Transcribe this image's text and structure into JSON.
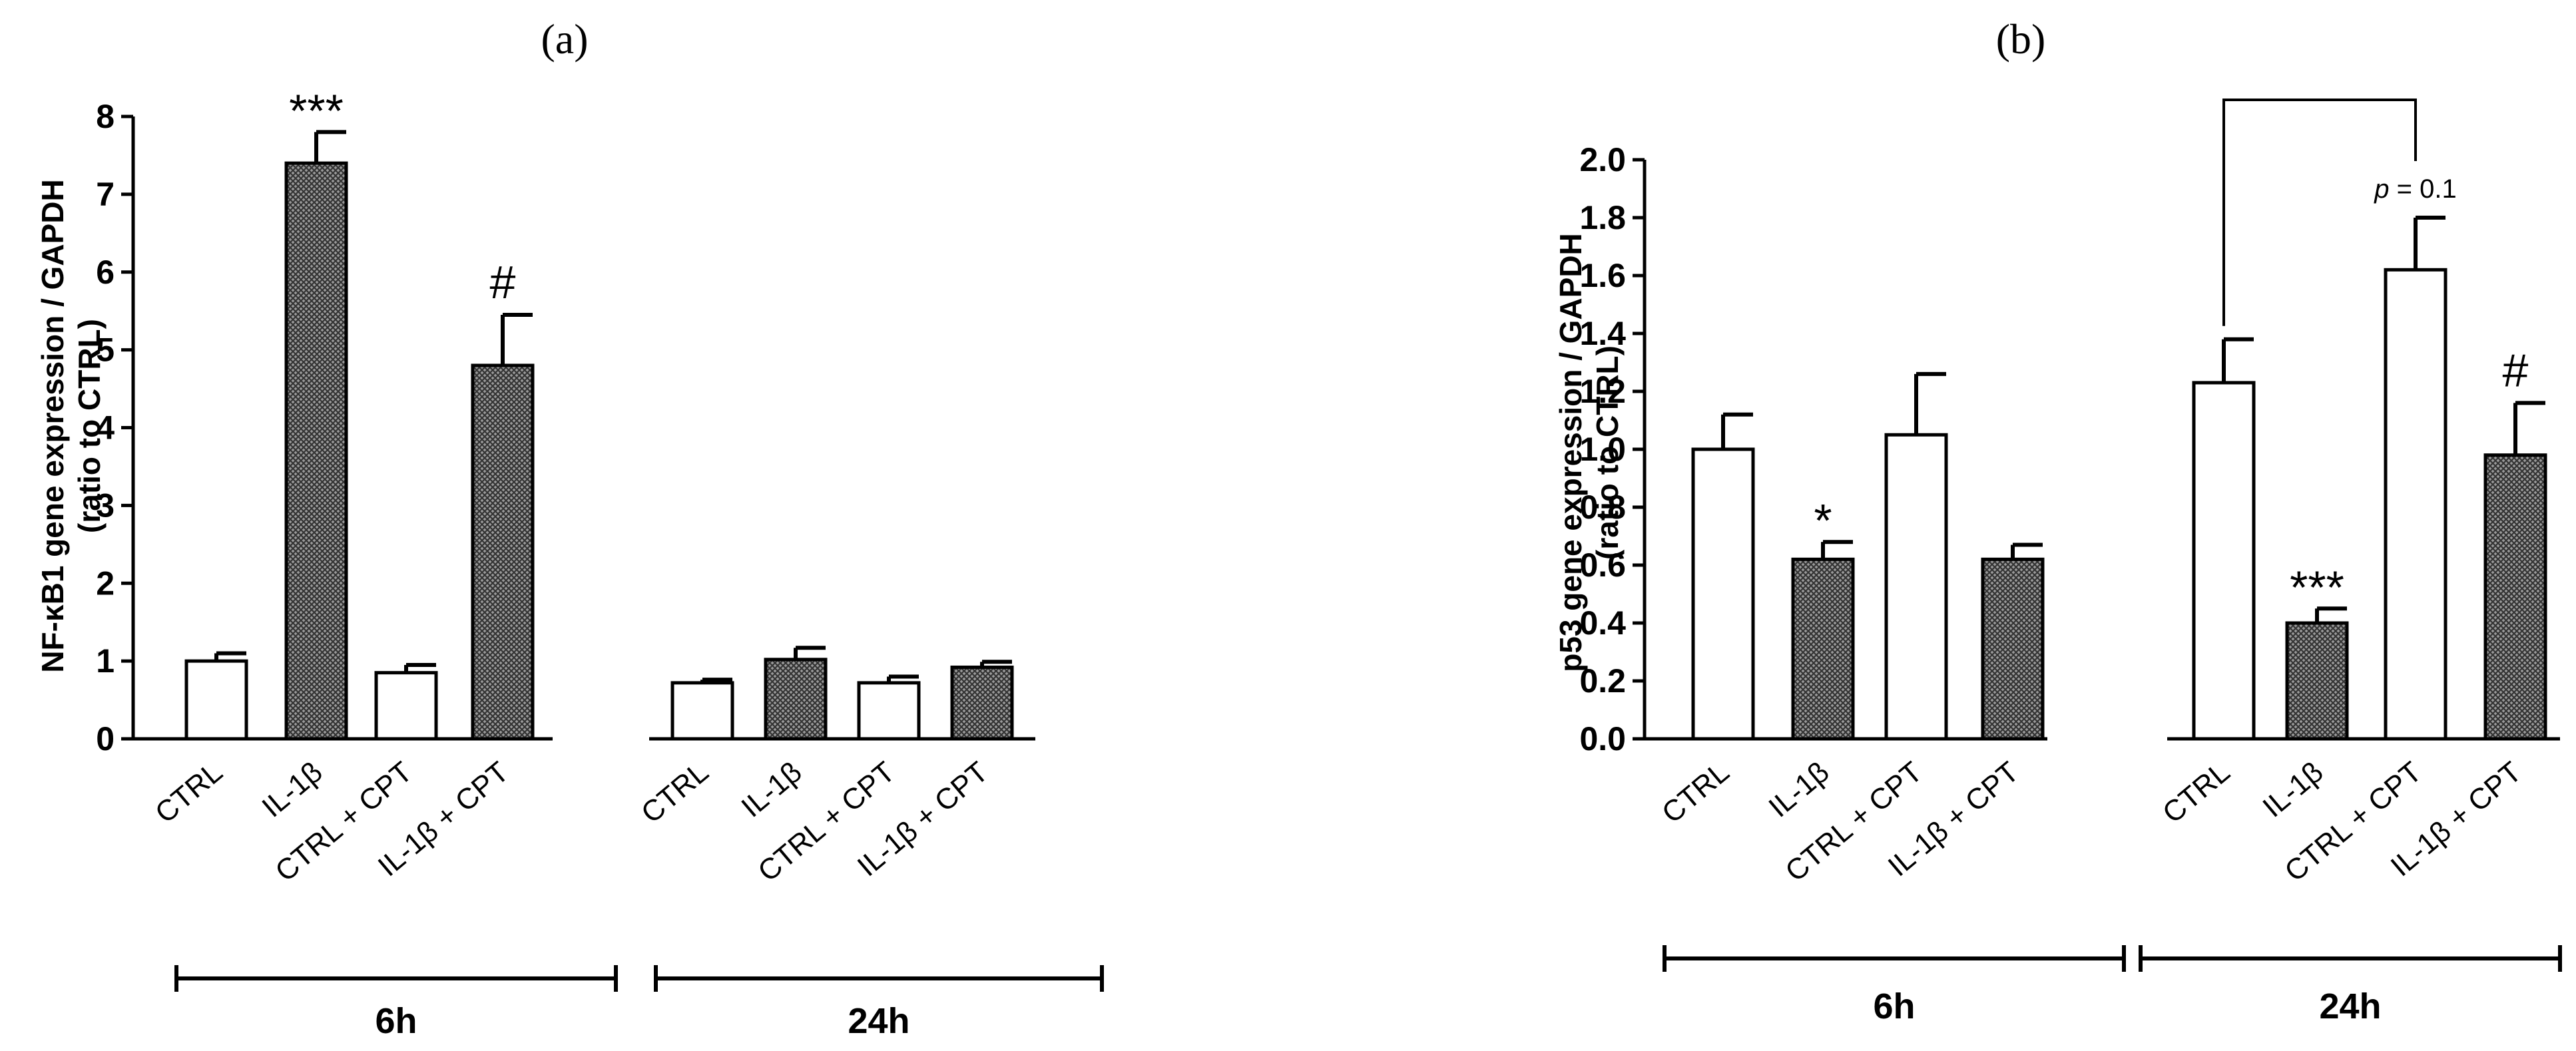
{
  "colors": {
    "axis": "#000000",
    "bar_open": "#ffffff",
    "bar_hatched": "#555555",
    "background": "#ffffff"
  },
  "chart_data": [
    {
      "type": "bar",
      "panel_label": "(a)",
      "title": "",
      "ylabel_line1": "NF-κB1 gene expression / GAPDH",
      "ylabel_line2": "(ratio to CTRL)",
      "ylim": [
        0,
        8
      ],
      "yticks": [
        "0",
        "1",
        "2",
        "3",
        "4",
        "5",
        "6",
        "7",
        "8"
      ],
      "groups": [
        {
          "label": "6h",
          "bars": [
            {
              "category": "CTRL",
              "value": 1.0,
              "error": 0.1,
              "fill": "open",
              "annotation": ""
            },
            {
              "category": "IL-1β",
              "value": 7.4,
              "error": 0.4,
              "fill": "hatched",
              "annotation": "***"
            },
            {
              "category": "CTRL + CPT",
              "value": 0.85,
              "error": 0.1,
              "fill": "open",
              "annotation": ""
            },
            {
              "category": "IL-1β + CPT",
              "value": 4.8,
              "error": 0.65,
              "fill": "hatched",
              "annotation": "#"
            }
          ]
        },
        {
          "label": "24h",
          "bars": [
            {
              "category": "CTRL",
              "value": 0.72,
              "error": 0.04,
              "fill": "open",
              "annotation": ""
            },
            {
              "category": "IL-1β",
              "value": 1.02,
              "error": 0.15,
              "fill": "hatched",
              "annotation": ""
            },
            {
              "category": "CTRL + CPT",
              "value": 0.72,
              "error": 0.08,
              "fill": "open",
              "annotation": ""
            },
            {
              "category": "IL-1β + CPT",
              "value": 0.92,
              "error": 0.07,
              "fill": "hatched",
              "annotation": ""
            }
          ]
        }
      ]
    },
    {
      "type": "bar",
      "panel_label": "(b)",
      "title": "",
      "ylabel_line1": "p53 gene expression / GAPDH",
      "ylabel_line2": "(ratio to CTRL)",
      "ylim": [
        0,
        2.0
      ],
      "yticks": [
        "0.0",
        "0.2",
        "0.4",
        "0.6",
        "0.8",
        "1.0",
        "1.2",
        "1.4",
        "1.6",
        "1.8",
        "2.0"
      ],
      "comparison": {
        "from_group": 1,
        "from_bar": 0,
        "to_group": 1,
        "to_bar": 2,
        "p_italic": "p",
        "p_rest": " = 0.1"
      },
      "groups": [
        {
          "label": "6h",
          "bars": [
            {
              "category": "CTRL",
              "value": 1.0,
              "error": 0.12,
              "fill": "open",
              "annotation": ""
            },
            {
              "category": "IL-1β",
              "value": 0.62,
              "error": 0.06,
              "fill": "hatched",
              "annotation": "*"
            },
            {
              "category": "CTRL + CPT",
              "value": 1.05,
              "error": 0.21,
              "fill": "open",
              "annotation": ""
            },
            {
              "category": "IL-1β + CPT",
              "value": 0.62,
              "error": 0.05,
              "fill": "hatched",
              "annotation": ""
            }
          ]
        },
        {
          "label": "24h",
          "bars": [
            {
              "category": "CTRL",
              "value": 1.23,
              "error": 0.15,
              "fill": "open",
              "annotation": ""
            },
            {
              "category": "IL-1β",
              "value": 0.4,
              "error": 0.05,
              "fill": "hatched",
              "annotation": "***"
            },
            {
              "category": "CTRL + CPT",
              "value": 1.62,
              "error": 0.18,
              "fill": "open",
              "annotation": ""
            },
            {
              "category": "IL-1β + CPT",
              "value": 0.98,
              "error": 0.18,
              "fill": "hatched",
              "annotation": "#"
            }
          ]
        }
      ]
    }
  ]
}
